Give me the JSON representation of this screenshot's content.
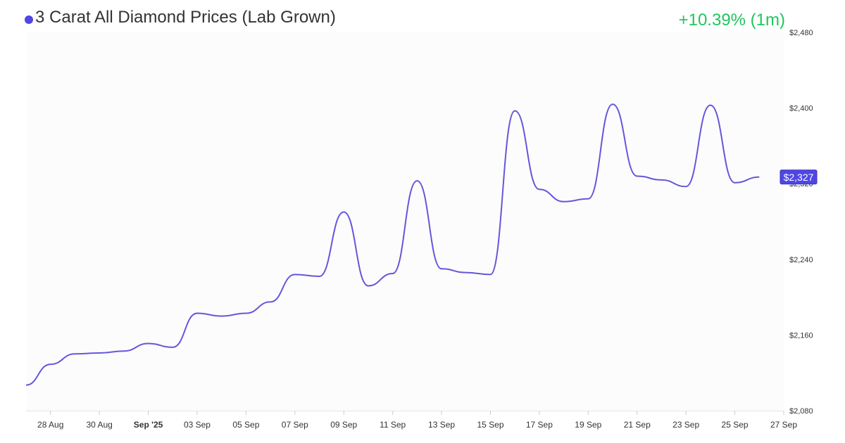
{
  "header": {
    "title": "3 Carat All Diamond Prices (Lab Grown)",
    "change": "+10.39% (1m)"
  },
  "colors": {
    "series": "#6457db",
    "dot": "#4f46e5",
    "change": "#22c55e",
    "plot_bg": "#fcfcfc"
  },
  "chart_data": {
    "type": "line",
    "title": "3 Carat All Diamond Prices (Lab Grown)",
    "xlabel": "",
    "ylabel": "",
    "grid": false,
    "xlim": [
      "2025-08-27",
      "2025-09-27"
    ],
    "ylim": [
      2080,
      2480
    ],
    "y_ticks": [
      2080,
      2160,
      2240,
      2320,
      2400,
      2480
    ],
    "y_tick_labels": [
      "$2,080",
      "$2,160",
      "$2,240",
      "$2,320",
      "$2,400",
      "$2,480"
    ],
    "x_ticks": [
      {
        "date": "2025-08-28",
        "label": "28 Aug",
        "bold": false
      },
      {
        "date": "2025-08-30",
        "label": "30 Aug",
        "bold": false
      },
      {
        "date": "2025-09-01",
        "label": "Sep '25",
        "bold": true
      },
      {
        "date": "2025-09-03",
        "label": "03 Sep",
        "bold": false
      },
      {
        "date": "2025-09-05",
        "label": "05 Sep",
        "bold": false
      },
      {
        "date": "2025-09-07",
        "label": "07 Sep",
        "bold": false
      },
      {
        "date": "2025-09-09",
        "label": "09 Sep",
        "bold": false
      },
      {
        "date": "2025-09-11",
        "label": "11 Sep",
        "bold": false
      },
      {
        "date": "2025-09-13",
        "label": "13 Sep",
        "bold": false
      },
      {
        "date": "2025-09-15",
        "label": "15 Sep",
        "bold": false
      },
      {
        "date": "2025-09-17",
        "label": "17 Sep",
        "bold": false
      },
      {
        "date": "2025-09-19",
        "label": "19 Sep",
        "bold": false
      },
      {
        "date": "2025-09-21",
        "label": "21 Sep",
        "bold": false
      },
      {
        "date": "2025-09-23",
        "label": "23 Sep",
        "bold": false
      },
      {
        "date": "2025-09-25",
        "label": "25 Sep",
        "bold": false
      },
      {
        "date": "2025-09-27",
        "label": "27 Sep",
        "bold": false
      }
    ],
    "series": [
      {
        "x": [
          "2025-08-27",
          "2025-08-28",
          "2025-08-29",
          "2025-08-30",
          "2025-08-31",
          "2025-09-01",
          "2025-09-02",
          "2025-09-03",
          "2025-09-04",
          "2025-09-05",
          "2025-09-06",
          "2025-09-07",
          "2025-09-08",
          "2025-09-09",
          "2025-09-10",
          "2025-09-11",
          "2025-09-12",
          "2025-09-13",
          "2025-09-14",
          "2025-09-15",
          "2025-09-16",
          "2025-09-17",
          "2025-09-18",
          "2025-09-19",
          "2025-09-20",
          "2025-09-21",
          "2025-09-22",
          "2025-09-23",
          "2025-09-24",
          "2025-09-25",
          "2025-09-26"
        ],
        "values": [
          2107,
          2129,
          2140,
          2141,
          2143,
          2151,
          2147,
          2183,
          2180,
          2183,
          2195,
          2224,
          2222,
          2290,
          2212,
          2225,
          2323,
          2230,
          2226,
          2224,
          2397,
          2314,
          2301,
          2304,
          2404,
          2328,
          2324,
          2317,
          2403,
          2321,
          2327
        ]
      }
    ],
    "last_value_label": "$2,327"
  }
}
